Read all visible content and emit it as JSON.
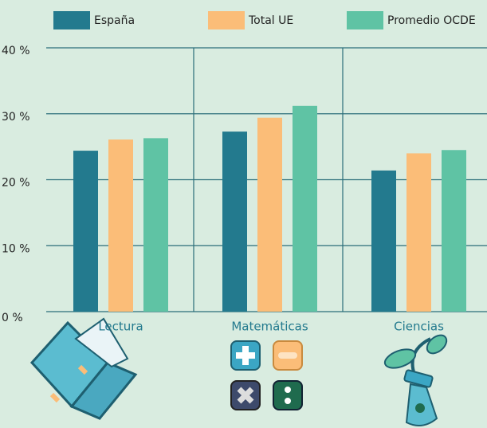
{
  "chart_data": {
    "type": "bar",
    "categories": [
      "Lectura",
      "Matemáticas",
      "Ciencias"
    ],
    "series": [
      {
        "name": "España",
        "color": "#237a8e",
        "values": [
          24.4,
          27.3,
          21.4
        ]
      },
      {
        "name": "Total UE",
        "color": "#fbbd78",
        "values": [
          26.1,
          29.4,
          24.0
        ]
      },
      {
        "name": "Promedio OCDE",
        "color": "#5fc3a4",
        "values": [
          26.3,
          31.2,
          24.5
        ]
      }
    ],
    "ylim": [
      0,
      40
    ],
    "yticks": [
      {
        "value": 0,
        "label": "0 %"
      },
      {
        "value": 10,
        "label": "10 %"
      },
      {
        "value": 20,
        "label": "20 %"
      },
      {
        "value": 30,
        "label": "30 %"
      },
      {
        "value": 40,
        "label": "40 %"
      }
    ],
    "grid": true,
    "legend": "top"
  }
}
